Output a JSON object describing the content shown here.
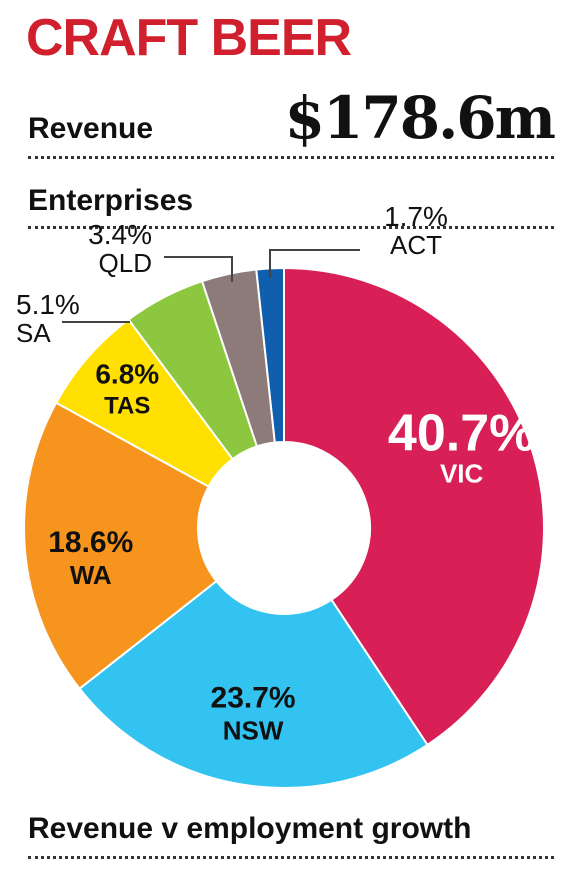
{
  "header": {
    "title": "CRAFT BEER",
    "title_color": "#d0202e",
    "revenue_label": "Revenue",
    "revenue_value": "$178.6m",
    "enterprises_label": "Enterprises",
    "footer_label": "Revenue v employment growth"
  },
  "chart_data": {
    "type": "pie",
    "donut": true,
    "slices": [
      {
        "label": "VIC",
        "value": 40.7,
        "value_label": "40.7%",
        "color": "#d81f56"
      },
      {
        "label": "NSW",
        "value": 23.7,
        "value_label": "23.7%",
        "color": "#33c3f0"
      },
      {
        "label": "WA",
        "value": 18.6,
        "value_label": "18.6%",
        "color": "#f7941d"
      },
      {
        "label": "TAS",
        "value": 6.8,
        "value_label": "6.8%",
        "color": "#ffe000"
      },
      {
        "label": "SA",
        "value": 5.1,
        "value_label": "5.1%",
        "color": "#8dc63f"
      },
      {
        "label": "QLD",
        "value": 3.4,
        "value_label": "3.4%",
        "color": "#8c7b79"
      },
      {
        "label": "ACT",
        "value": 1.7,
        "value_label": "1.7%",
        "color": "#0f5fae"
      }
    ]
  }
}
